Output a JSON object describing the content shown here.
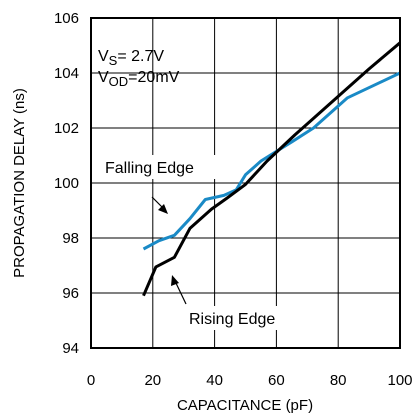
{
  "chart_data": {
    "type": "line",
    "title": "",
    "xlabel": "CAPACITANCE (pF)",
    "ylabel": "PROPAGATION DELAY (ns)",
    "xlim": [
      0,
      100
    ],
    "ylim": [
      94,
      106
    ],
    "x_ticks": [
      "0",
      "20",
      "40",
      "60",
      "80",
      "100"
    ],
    "y_ticks": [
      "94",
      "96",
      "98",
      "100",
      "102",
      "104",
      "106"
    ],
    "grid": true,
    "conditions": {
      "vs_main": "V",
      "vs_sub": "S",
      "vs_rest": "= 2.7V",
      "vod_main": "V",
      "vod_sub": "OD",
      "vod_rest": "=20mV"
    },
    "annotations": {
      "falling": "Falling Edge",
      "rising": "Rising Edge"
    },
    "colors": {
      "falling": "#1a8ac6",
      "rising": "#000000"
    },
    "series": [
      {
        "name": "Falling Edge",
        "x": [
          17,
          22,
          27,
          32,
          37,
          43,
          47,
          50,
          55,
          60,
          65,
          72,
          83,
          100
        ],
        "y": [
          97.6,
          97.9,
          98.1,
          98.7,
          99.4,
          99.55,
          99.75,
          100.3,
          100.8,
          101.15,
          101.5,
          102.0,
          103.1,
          104.0
        ]
      },
      {
        "name": "Rising Edge",
        "x": [
          17,
          21,
          27,
          32,
          39,
          44,
          50,
          57,
          66,
          79,
          90,
          100
        ],
        "y": [
          95.9,
          96.95,
          97.3,
          98.35,
          99.05,
          99.45,
          99.95,
          100.8,
          101.75,
          103.05,
          104.15,
          105.1
        ]
      }
    ]
  }
}
